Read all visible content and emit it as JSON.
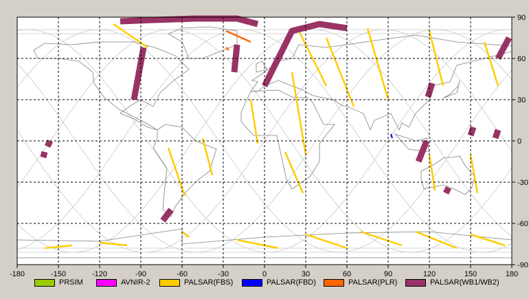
{
  "map": {
    "lon_ticks": [
      "-180",
      "-150",
      "-120",
      "-90",
      "-60",
      "-30",
      "0",
      "30",
      "60",
      "90",
      "120",
      "150",
      "180"
    ],
    "lat_ticks": [
      "90",
      "60",
      "30",
      "0",
      "-30",
      "-60",
      "-90"
    ],
    "lon_range": [
      -180,
      180
    ],
    "lat_range": [
      -90,
      90
    ],
    "grid": "dashed",
    "colors": {
      "background": "#ffffff",
      "coast": "#808080",
      "orbit": "#c0c0c0",
      "grid": "#000000",
      "frame": "#d4d0c8"
    }
  },
  "legend": [
    {
      "label": "PRSIM",
      "color": "#99cc00"
    },
    {
      "label": "AVNIR-2",
      "color": "#ff00ff"
    },
    {
      "label": "PALSAR(FBS)",
      "color": "#ffcc00"
    },
    {
      "label": "PALSAR(FBD)",
      "color": "#0000ff"
    },
    {
      "label": "PALSAR(PLR)",
      "color": "#ff6600"
    },
    {
      "label": "PALSAR(WB1/WB2)",
      "color": "#993366"
    }
  ],
  "swaths": {
    "wb": [
      {
        "name": "wb-canada-arc",
        "points": [
          [
            -105,
            87
          ],
          [
            -80,
            88
          ],
          [
            -50,
            89
          ],
          [
            -20,
            89
          ],
          [
            -5,
            85
          ]
        ],
        "color": "#993366"
      },
      {
        "name": "wb-siberia-arc",
        "points": [
          [
            0,
            40
          ],
          [
            10,
            60
          ],
          [
            20,
            80
          ],
          [
            40,
            85
          ],
          [
            60,
            82
          ]
        ],
        "color": "#993366"
      },
      {
        "name": "wb-north-america",
        "points": [
          [
            -88,
            68
          ],
          [
            -95,
            30
          ]
        ],
        "color": "#993366"
      },
      {
        "name": "wb-europe",
        "points": [
          [
            -20,
            70
          ],
          [
            -22,
            50
          ]
        ],
        "color": "#993366"
      },
      {
        "name": "wb-east-russia",
        "points": [
          [
            178,
            75
          ],
          [
            170,
            60
          ]
        ],
        "color": "#993366"
      },
      {
        "name": "wb-china",
        "points": [
          [
            122,
            42
          ],
          [
            119,
            32
          ]
        ],
        "color": "#993366"
      },
      {
        "name": "wb-indonesia",
        "points": [
          [
            118,
            0
          ],
          [
            112,
            -15
          ]
        ],
        "color": "#993366"
      },
      {
        "name": "wb-pacific-a",
        "points": [
          [
            152,
            10
          ],
          [
            150,
            4
          ]
        ],
        "color": "#993366"
      },
      {
        "name": "wb-pacific-b",
        "points": [
          [
            170,
            8
          ],
          [
            168,
            2
          ]
        ],
        "color": "#993366"
      },
      {
        "name": "wb-hawaii-a",
        "points": [
          [
            -156,
            0
          ],
          [
            -158,
            -4
          ]
        ],
        "color": "#993366"
      },
      {
        "name": "wb-hawaii-b",
        "points": [
          [
            -160,
            -8
          ],
          [
            -161,
            -12
          ]
        ],
        "color": "#993366"
      },
      {
        "name": "wb-australia",
        "points": [
          [
            134,
            -34
          ],
          [
            132,
            -38
          ]
        ],
        "color": "#993366"
      },
      {
        "name": "wb-argentina",
        "points": [
          [
            -68,
            -50
          ],
          [
            -74,
            -58
          ]
        ],
        "color": "#993366"
      }
    ],
    "fbs": [
      {
        "name": "fbs-1",
        "points": [
          [
            -110,
            85
          ],
          [
            -85,
            68
          ]
        ]
      },
      {
        "name": "fbs-2",
        "points": [
          [
            -70,
            -5
          ],
          [
            -58,
            -40
          ]
        ]
      },
      {
        "name": "fbs-3",
        "points": [
          [
            -45,
            2
          ],
          [
            -38,
            -25
          ]
        ]
      },
      {
        "name": "fbs-4",
        "points": [
          [
            -10,
            30
          ],
          [
            -5,
            -2
          ]
        ]
      },
      {
        "name": "fbs-5",
        "points": [
          [
            20,
            50
          ],
          [
            30,
            -10
          ]
        ]
      },
      {
        "name": "fbs-6",
        "points": [
          [
            15,
            -8
          ],
          [
            28,
            -38
          ]
        ]
      },
      {
        "name": "fbs-7",
        "points": [
          [
            25,
            80
          ],
          [
            45,
            40
          ]
        ]
      },
      {
        "name": "fbs-8",
        "points": [
          [
            45,
            75
          ],
          [
            65,
            25
          ]
        ]
      },
      {
        "name": "fbs-9",
        "points": [
          [
            75,
            82
          ],
          [
            90,
            30
          ]
        ]
      },
      {
        "name": "fbs-10",
        "points": [
          [
            120,
            80
          ],
          [
            130,
            40
          ]
        ]
      },
      {
        "name": "fbs-11",
        "points": [
          [
            160,
            72
          ],
          [
            170,
            40
          ]
        ]
      },
      {
        "name": "fbs-12",
        "points": [
          [
            120,
            -10
          ],
          [
            124,
            -36
          ]
        ]
      },
      {
        "name": "fbs-13",
        "points": [
          [
            150,
            -10
          ],
          [
            155,
            -38
          ]
        ]
      },
      {
        "name": "fbs-14",
        "points": [
          [
            -160,
            -78
          ],
          [
            -140,
            -76
          ]
        ]
      },
      {
        "name": "fbs-15",
        "points": [
          [
            -120,
            -74
          ],
          [
            -100,
            -76
          ]
        ]
      },
      {
        "name": "fbs-16",
        "points": [
          [
            -20,
            -72
          ],
          [
            10,
            -78
          ]
        ]
      },
      {
        "name": "fbs-17",
        "points": [
          [
            30,
            -68
          ],
          [
            60,
            -78
          ]
        ]
      },
      {
        "name": "fbs-18",
        "points": [
          [
            70,
            -66
          ],
          [
            100,
            -76
          ]
        ]
      },
      {
        "name": "fbs-19",
        "points": [
          [
            110,
            -66
          ],
          [
            140,
            -78
          ]
        ]
      },
      {
        "name": "fbs-20",
        "points": [
          [
            150,
            -68
          ],
          [
            175,
            -76
          ]
        ]
      },
      {
        "name": "fbs-21",
        "points": [
          [
            -60,
            -66
          ],
          [
            -55,
            -70
          ]
        ]
      }
    ],
    "plr": [
      {
        "name": "plr-1",
        "points": [
          [
            -28,
            80
          ],
          [
            -10,
            72
          ]
        ]
      },
      {
        "name": "plr-2",
        "points": [
          [
            -28,
            68
          ],
          [
            -26,
            66
          ]
        ]
      }
    ],
    "fbd": [
      {
        "name": "fbd-1",
        "points": [
          [
            92,
            5
          ],
          [
            93,
            2
          ]
        ]
      }
    ]
  }
}
